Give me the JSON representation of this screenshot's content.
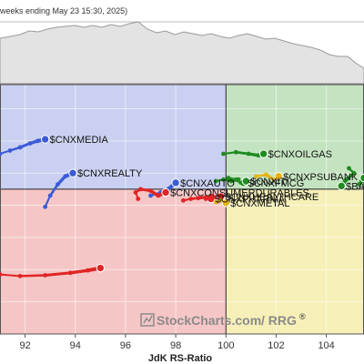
{
  "header": {
    "text": "weeks ending May 23 15:30, 2025)"
  },
  "watermark": {
    "brand": "StockCharts.com",
    "suffix": "/ RRG",
    "reg": "®"
  },
  "chart_data": {
    "type": "scatter",
    "subtype": "relative-rotation-graph",
    "xlabel": "JdK RS-Ratio",
    "ylabel": "",
    "xlim": [
      91,
      105.5
    ],
    "ylim": [
      91,
      106.5
    ],
    "x_ticks": [
      "92",
      "94",
      "96",
      "98",
      "100",
      "102",
      "104"
    ],
    "center": [
      100,
      100
    ],
    "quadrant_colors": {
      "leading": "#c4e3c0",
      "weakening": "#f6efb8",
      "lagging": "#f6c6c6",
      "improving": "#cad0f1"
    },
    "grid": true,
    "series": [
      {
        "name": "$CNXMEDIA",
        "color": "#3b5bd6",
        "label_pos": "right",
        "points": [
          [
            91.0,
            102.2
          ],
          [
            91.4,
            102.4
          ],
          [
            91.8,
            102.6
          ],
          [
            92.2,
            102.85
          ],
          [
            92.5,
            103.0
          ],
          [
            92.8,
            103.1
          ]
        ]
      },
      {
        "name": "$CNXREALTY",
        "color": "#3b5bd6",
        "label_pos": "right",
        "points": [
          [
            92.8,
            98.9
          ],
          [
            93.0,
            99.6
          ],
          [
            93.3,
            100.3
          ],
          [
            93.6,
            100.8
          ],
          [
            93.9,
            101.0
          ]
        ]
      },
      {
        "name": "$CNXAUTO",
        "color": "#3b5bd6",
        "label_pos": "right",
        "points": [
          [
            97.0,
            99.6
          ],
          [
            97.4,
            99.8
          ],
          [
            97.7,
            100.0
          ],
          [
            98.0,
            100.4
          ]
        ]
      },
      {
        "name": "$CNXCONSUMERDURABLES",
        "color": "#e02424",
        "label_pos": "right",
        "points": [
          [
            96.5,
            99.4
          ],
          [
            96.4,
            99.8
          ],
          [
            96.6,
            100.0
          ],
          [
            97.0,
            99.9
          ],
          [
            97.3,
            99.6
          ],
          [
            97.6,
            99.8
          ]
        ]
      },
      {
        "name": "$CNXPHARMA",
        "color": "#e02424",
        "label_pos": "right",
        "points": [
          [
            98.3,
            99.3
          ],
          [
            98.6,
            99.4
          ],
          [
            98.9,
            99.45
          ],
          [
            99.2,
            99.5
          ],
          [
            99.4,
            99.4
          ]
        ]
      },
      {
        "name": "$CNXHEALTHCARE",
        "color": "#e02424",
        "label_pos": "right",
        "points": [
          [
            99.2,
            99.4
          ],
          [
            99.4,
            99.6
          ],
          [
            99.6,
            99.5
          ],
          [
            99.8,
            99.55
          ]
        ]
      },
      {
        "name": "$CNXMETAL",
        "color": "#e8b20f",
        "label_pos": "right",
        "points": [
          [
            99.6,
            99.2
          ],
          [
            99.8,
            99.3
          ],
          [
            100.0,
            99.15
          ]
        ]
      },
      {
        "name": "$CNXPSUBANK",
        "color": "#e8b20f",
        "label_pos": "right",
        "points": [
          [
            101.2,
            100.8
          ],
          [
            101.6,
            100.9
          ],
          [
            101.9,
            100.6
          ],
          [
            102.1,
            100.8
          ]
        ]
      },
      {
        "name": "$CNXFMCG",
        "color": "#1e8c1e",
        "label_pos": "right",
        "points": [
          [
            99.6,
            100.5
          ],
          [
            99.9,
            100.6
          ],
          [
            100.2,
            100.5
          ],
          [
            100.5,
            100.6
          ],
          [
            100.7,
            100.4
          ]
        ]
      },
      {
        "name": "$CNXIT",
        "color": "#1e8c1e",
        "label_pos": "right",
        "points": [
          [
            100.1,
            100.7
          ],
          [
            100.4,
            100.6
          ],
          [
            100.6,
            100.4
          ],
          [
            100.8,
            100.5
          ]
        ]
      },
      {
        "name": "$CNXOILGAS",
        "color": "#1e8c1e",
        "label_pos": "right",
        "points": [
          [
            99.9,
            102.2
          ],
          [
            100.4,
            102.3
          ],
          [
            100.9,
            102.2
          ],
          [
            101.3,
            102.1
          ],
          [
            101.5,
            102.2
          ]
        ]
      },
      {
        "name": "$BANKNIFTY",
        "color": "#1e8c1e",
        "label_pos": "right",
        "points": [
          [
            104.9,
            101.3
          ],
          [
            105.1,
            101.0
          ],
          [
            104.8,
            100.6
          ],
          [
            104.6,
            100.2
          ]
        ]
      },
      {
        "name": "",
        "color": "#1e8c1e",
        "label_pos": "none",
        "points": [
          [
            105.3,
            100.3
          ],
          [
            105.4,
            100.5
          ],
          [
            105.5,
            100.7
          ]
        ]
      },
      {
        "name": "",
        "color": "#e02424",
        "label_pos": "none",
        "points": [
          [
            91.0,
            94.7
          ],
          [
            91.8,
            94.6
          ],
          [
            92.8,
            94.65
          ],
          [
            93.8,
            94.8
          ],
          [
            94.5,
            94.95
          ],
          [
            95.0,
            95.1
          ]
        ]
      }
    ]
  }
}
